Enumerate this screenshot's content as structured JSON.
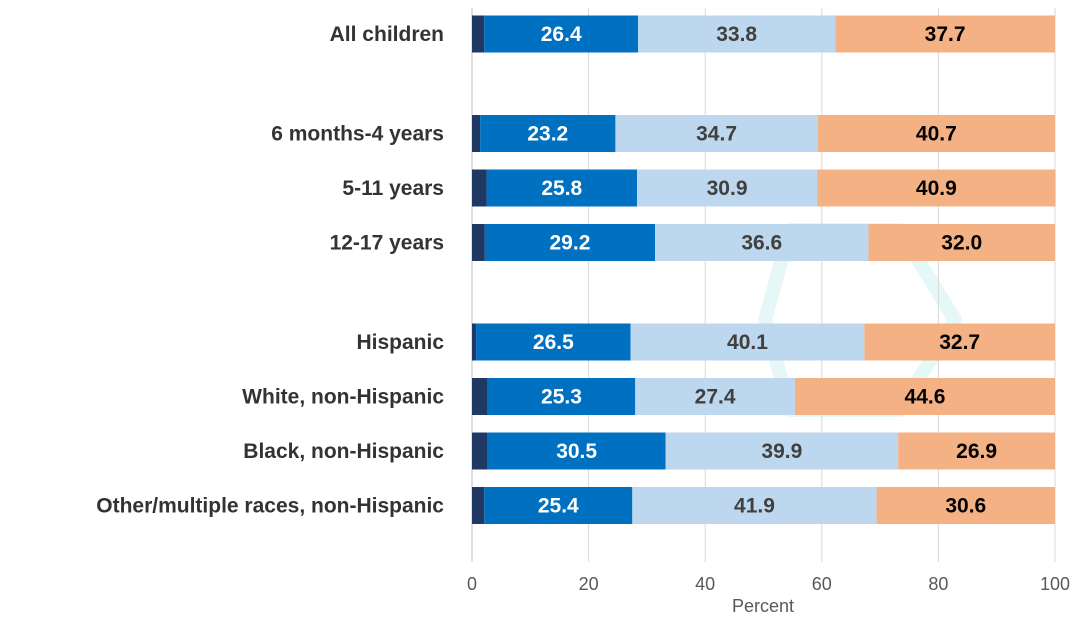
{
  "chart_data": {
    "type": "bar",
    "orientation": "horizontal",
    "stacked": true,
    "xlabel": "Percent",
    "ylabel": "",
    "xlim": [
      0,
      100
    ],
    "xticks": [
      0,
      20,
      40,
      60,
      80,
      100
    ],
    "grid": true,
    "categories": [
      {
        "label": "All children",
        "group": 0
      },
      {
        "label": "6 months-4 years",
        "group": 1
      },
      {
        "label": "5-11 years",
        "group": 1
      },
      {
        "label": "12-17 years",
        "group": 1
      },
      {
        "label": "Hispanic",
        "group": 2
      },
      {
        "label": "White, non-Hispanic",
        "group": 2
      },
      {
        "label": "Black, non-Hispanic",
        "group": 2
      },
      {
        "label": "Other/multiple races, non-Hispanic",
        "group": 2
      }
    ],
    "series": [
      {
        "color": "#1f3864",
        "show_labels": false,
        "label_color": "#ffffff",
        "values": [
          2.1,
          1.4,
          2.5,
          2.2,
          0.7,
          2.7,
          2.7,
          2.1
        ]
      },
      {
        "color": "#0070c0",
        "show_labels": true,
        "label_color": "#ffffff",
        "values": [
          26.4,
          23.2,
          25.8,
          29.2,
          26.5,
          25.3,
          30.5,
          25.4
        ]
      },
      {
        "color": "#bdd7ee",
        "show_labels": true,
        "label_color": "#404040",
        "values": [
          33.8,
          34.7,
          30.9,
          36.6,
          40.1,
          27.4,
          39.9,
          41.9
        ]
      },
      {
        "color": "#f4b183",
        "show_labels": true,
        "label_color": "#000000",
        "values": [
          37.7,
          40.7,
          40.9,
          32.0,
          32.7,
          44.6,
          26.9,
          30.6
        ]
      }
    ]
  }
}
